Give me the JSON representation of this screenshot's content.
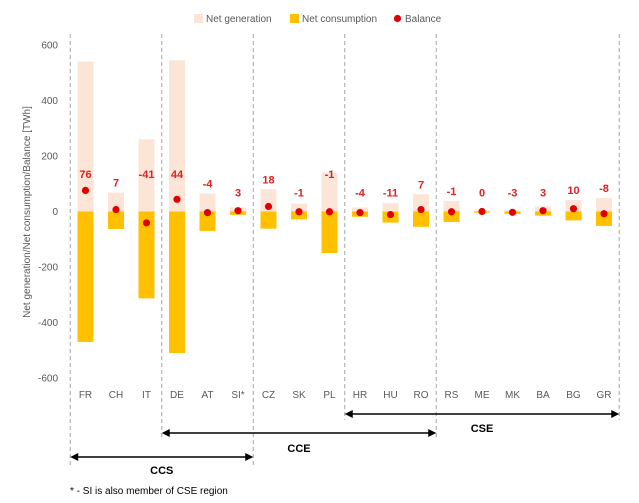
{
  "chart_data": {
    "type": "bar",
    "title": "",
    "ylabel": "Net generation/Net consumption/Balance [TWh]",
    "xlabel": "",
    "ylim": [
      -600,
      600
    ],
    "yticks": [
      600,
      400,
      200,
      0,
      -200,
      -400,
      -600
    ],
    "categories": [
      "FR",
      "CH",
      "IT",
      "DE",
      "AT",
      "SI*",
      "CZ",
      "SK",
      "PL",
      "HR",
      "HU",
      "RO",
      "RS",
      "ME",
      "MK",
      "BA",
      "BG",
      "GR"
    ],
    "series": [
      {
        "name": "Net generation",
        "values": [
          540,
          68,
          260,
          545,
          65,
          15,
          80,
          28,
          140,
          14,
          30,
          62,
          38,
          4,
          6,
          18,
          42,
          48
        ]
      },
      {
        "name": "Net consumption",
        "values": [
          -470,
          -63,
          -313,
          -510,
          -70,
          -12,
          -62,
          -28,
          -150,
          -19,
          -40,
          -55,
          -38,
          -4,
          -9,
          -15,
          -32,
          -52
        ]
      },
      {
        "name": "Balance",
        "values": [
          76,
          7,
          -41,
          44,
          -4,
          3,
          18,
          -1,
          -1,
          -4,
          -11,
          7,
          -1,
          0,
          -3,
          3,
          10,
          -8
        ]
      }
    ],
    "data_labels": [
      "76",
      "7",
      "-41",
      "44",
      "-4",
      "3",
      "18",
      "-1",
      "-1",
      "-4",
      "-11",
      "7",
      "-1",
      "0",
      "-3",
      "3",
      "10",
      "-8"
    ],
    "legend_position": "top",
    "colors": {
      "Net generation": "#fce4d6",
      "Net consumption": "#ffc000",
      "Balance": "#e00000"
    },
    "regions": [
      {
        "name": "CCS",
        "from": "FR",
        "to": "SI*"
      },
      {
        "name": "CCE",
        "from": "DE",
        "to": "RO"
      },
      {
        "name": "CSE",
        "from": "HR",
        "to": "GR"
      }
    ],
    "footnote": "* - SI is also member of CSE region"
  }
}
